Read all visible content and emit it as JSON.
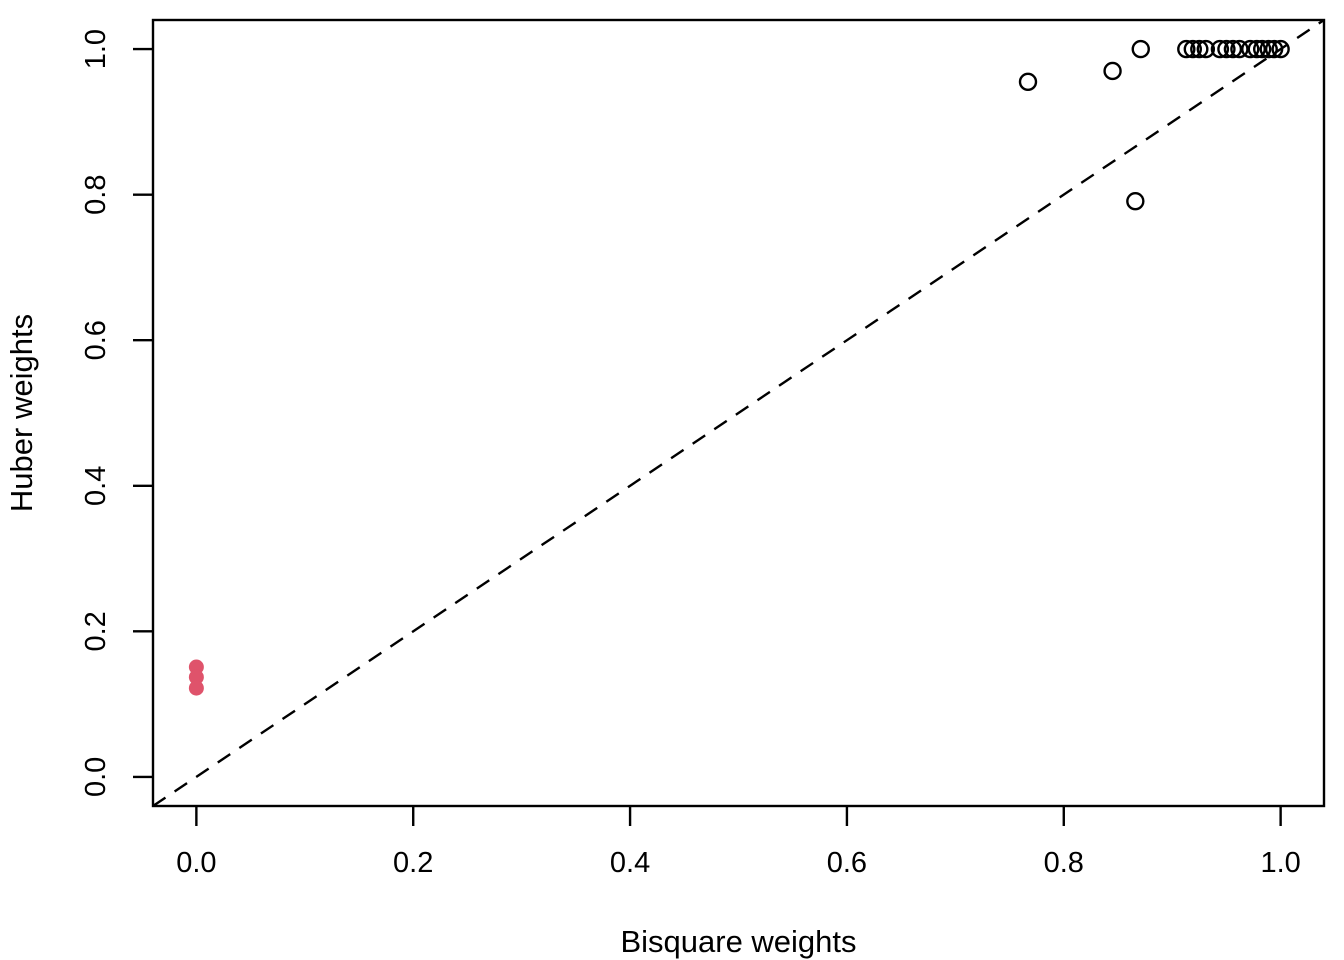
{
  "figure": {
    "background": "#ffffff",
    "foreground": "#000000"
  },
  "chart_data": {
    "type": "scatter",
    "title": "",
    "xlabel": "Bisquare weights",
    "ylabel": "Huber weights",
    "xlim": [
      -0.04,
      1.04
    ],
    "ylim": [
      -0.04,
      1.04
    ],
    "x_ticks": [
      0.0,
      0.2,
      0.4,
      0.6,
      0.8,
      1.0
    ],
    "x_tick_labels": [
      "0.0",
      "0.2",
      "0.4",
      "0.6",
      "0.8",
      "1.0"
    ],
    "y_ticks": [
      0.0,
      0.2,
      0.4,
      0.6,
      0.8,
      1.0
    ],
    "y_tick_labels": [
      "0.0",
      "0.2",
      "0.4",
      "0.6",
      "0.8",
      "1.0"
    ],
    "grid": false,
    "legend": "none",
    "reference_line": {
      "kind": "identity",
      "from": [
        -0.04,
        -0.04
      ],
      "to": [
        1.04,
        1.04
      ],
      "style": "dashed",
      "color": "#000000"
    },
    "series": [
      {
        "name": "observations",
        "marker": "open-circle",
        "color": "#000000",
        "fill": "none",
        "points": [
          [
            0.767,
            0.955
          ],
          [
            0.845,
            0.97
          ],
          [
            0.871,
            1.0
          ],
          [
            0.866,
            0.791
          ],
          [
            0.913,
            1.0
          ],
          [
            0.919,
            1.0
          ],
          [
            0.925,
            1.0
          ],
          [
            0.931,
            1.0
          ],
          [
            0.944,
            1.0
          ],
          [
            0.95,
            1.0
          ],
          [
            0.956,
            1.0
          ],
          [
            0.962,
            1.0
          ],
          [
            0.972,
            1.0
          ],
          [
            0.978,
            1.0
          ],
          [
            0.983,
            1.0
          ],
          [
            0.989,
            1.0
          ],
          [
            0.994,
            1.0
          ],
          [
            1.0,
            1.0
          ]
        ]
      },
      {
        "name": "flagged-observations",
        "marker": "filled-circle",
        "color": "#DF536B",
        "fill": "#DF536B",
        "points": [
          [
            0.0,
            0.151
          ],
          [
            0.0,
            0.137
          ],
          [
            0.0,
            0.122
          ]
        ]
      }
    ]
  }
}
